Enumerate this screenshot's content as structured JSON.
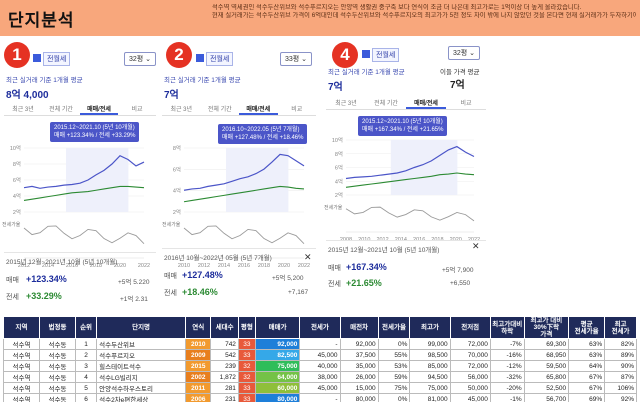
{
  "header": {
    "title": "단지분석",
    "notes": [
      "석수역 역세권인 석수두산위브와 석수푸르지오는 안양역 생활권 중구축 보다 연식이 조금 더 나은데 최고가로는 1억이상 더 높게 올라갔습니다.",
      "현재 실거래가는 석수두산위브 가격이 6억대인데 석수두산위브와 석수푸르지오의 최고가가 5천 정도 차이 밖에 나지 않았던 것을 본다면 현재 실거래가가 두자하기에 적합해 보입니다."
    ]
  },
  "panels": [
    {
      "number": "1",
      "tag": "전월세",
      "size": "32평 ⌄",
      "sub": "최근 실거래 기준 1개월 평균",
      "price": "8억 4,000",
      "tabs": [
        "최근 3년",
        "전체 기간",
        "매매/전세",
        "비교"
      ],
      "tooltip": [
        "2015.12~2021.10 (5년 10개월)",
        "매매 +123.34%  /  전세 +33.29%"
      ],
      "period": "2015년 12월~2021년 10월 (5년 10개월)",
      "sale_label": "매매",
      "sale_pct": "+123.34%",
      "sale_side": "+5억 5.220",
      "rent_label": "전세",
      "rent_pct": "+33.29%",
      "rent_side": "+1억 2.31",
      "y_ticks": [
        "10억",
        "8억",
        "6억",
        "4억",
        "2억"
      ],
      "x_ticks": [
        "2012",
        "2014",
        "2016",
        "2018",
        "2020",
        "2022"
      ],
      "lower_label": "전세가율"
    },
    {
      "number": "2",
      "tag": "전월세",
      "size": "33평 ⌄",
      "sub": "최근 실거래 기준 1개월 평균",
      "price": "7억",
      "tabs": [
        "최근 3년",
        "전체 기간",
        "매매/전세",
        "비교"
      ],
      "tooltip": [
        "2016.10~2022.05 (5년 7개월)",
        "매매 +127.48%  /  전세 +18.46%"
      ],
      "period": "2016년 10월~2022년 05월 (5년 7개월)",
      "sale_label": "매매",
      "sale_pct": "+127.48%",
      "sale_side": "+5억 5,200",
      "rent_label": "전세",
      "rent_pct": "+18.46%",
      "rent_side": "+7,167",
      "y_ticks": [
        "8억",
        "6억",
        "4억",
        "2억"
      ],
      "x_ticks": [
        "2010",
        "2012",
        "2014",
        "2016",
        "2018",
        "2020",
        "2022"
      ],
      "lower_label": "전세가율"
    },
    {
      "number": "4",
      "tag": "전월세",
      "size": "32평 ⌄",
      "sub": "최근 실거래 기준 1개월 평균",
      "price": "7억",
      "extra_label": "이들 가격 평균",
      "extra_price": "7억",
      "tabs": [
        "최근 3년",
        "전체 기간",
        "매매/전세",
        "비교"
      ],
      "tooltip": [
        "2015.12~2021.10 (5년 10개월)",
        "매매 +167.34%  /  전세 +21.65%"
      ],
      "period": "2015년 12월~2021년 10월 (5년 10개월)",
      "sale_label": "매매",
      "sale_pct": "+167.34%",
      "sale_side": "+5억 7,900",
      "rent_label": "전세",
      "rent_pct": "+21.65%",
      "rent_side": "+6,550",
      "y_ticks": [
        "10억",
        "8억",
        "6억",
        "4억",
        "2억"
      ],
      "x_ticks": [
        "2008",
        "2010",
        "2012",
        "2014",
        "2016",
        "2018",
        "2020",
        "2022"
      ],
      "lower_label": "전세가율"
    }
  ],
  "table": {
    "headers": [
      "지역",
      "법정동",
      "순위",
      "단지명",
      "연식",
      "세대수",
      "평형",
      "매매가",
      "전세가",
      "매전차",
      "전세가율",
      "최고가",
      "전저점",
      "최고가대비\n하락",
      "최고가 대비\n30%下락\n가격",
      "평균\n전세가율",
      "최고\n전세가"
    ],
    "rows": [
      [
        "석수역",
        "석수동",
        "1",
        "석수두산위브",
        "2010",
        "742",
        "33",
        "92,000",
        "-",
        "92,000",
        "0%",
        "99,000",
        "72,000",
        "-7%",
        "69,300",
        "63%",
        "82%"
      ],
      [
        "석수역",
        "석수동",
        "2",
        "석수푸르지오",
        "2009",
        "542",
        "33",
        "82,500",
        "45,000",
        "37,500",
        "55%",
        "98,500",
        "70,000",
        "-16%",
        "68,950",
        "63%",
        "89%"
      ],
      [
        "석수역",
        "석수동",
        "3",
        "힐스테이트석수",
        "2015",
        "239",
        "32",
        "75,000",
        "40,000",
        "35,000",
        "53%",
        "85,000",
        "72,000",
        "-12%",
        "59,500",
        "64%",
        "90%"
      ],
      [
        "석수역",
        "석수동",
        "4",
        "석수LG빌리지",
        "2002",
        "1,872",
        "32",
        "64,000",
        "38,000",
        "26,000",
        "59%",
        "94,500",
        "56,000",
        "-32%",
        "65,800",
        "67%",
        "87%"
      ],
      [
        "석수역",
        "석수동",
        "5",
        "안양석수하우스토리",
        "2011",
        "281",
        "33",
        "60,000",
        "45,000",
        "15,000",
        "75%",
        "75,000",
        "50,000",
        "-20%",
        "52,500",
        "67%",
        "106%"
      ],
      [
        "석수역",
        "석수동",
        "6",
        "석수2차e편한세상",
        "2006",
        "231",
        "33",
        "80,000",
        "-",
        "80,000",
        "0%",
        "81,000",
        "45,000",
        "-1%",
        "56,700",
        "69%",
        "92%"
      ]
    ],
    "deal_colors": [
      "#1e7fd9",
      "#35a8e8",
      "#2fbd5a",
      "#74c247",
      "#8fbf3a",
      "#1e7fd9"
    ],
    "year_colors": [
      "#f29a2e",
      "#e87f1e",
      "#f29a2e",
      "#e87f1e",
      "#f29a2e",
      "#f29a2e"
    ]
  },
  "colors": {
    "sale": "#4b55c8",
    "rent": "#2c8a33",
    "header_bg": "#f8a77c",
    "table_head": "#1f2a5a"
  }
}
